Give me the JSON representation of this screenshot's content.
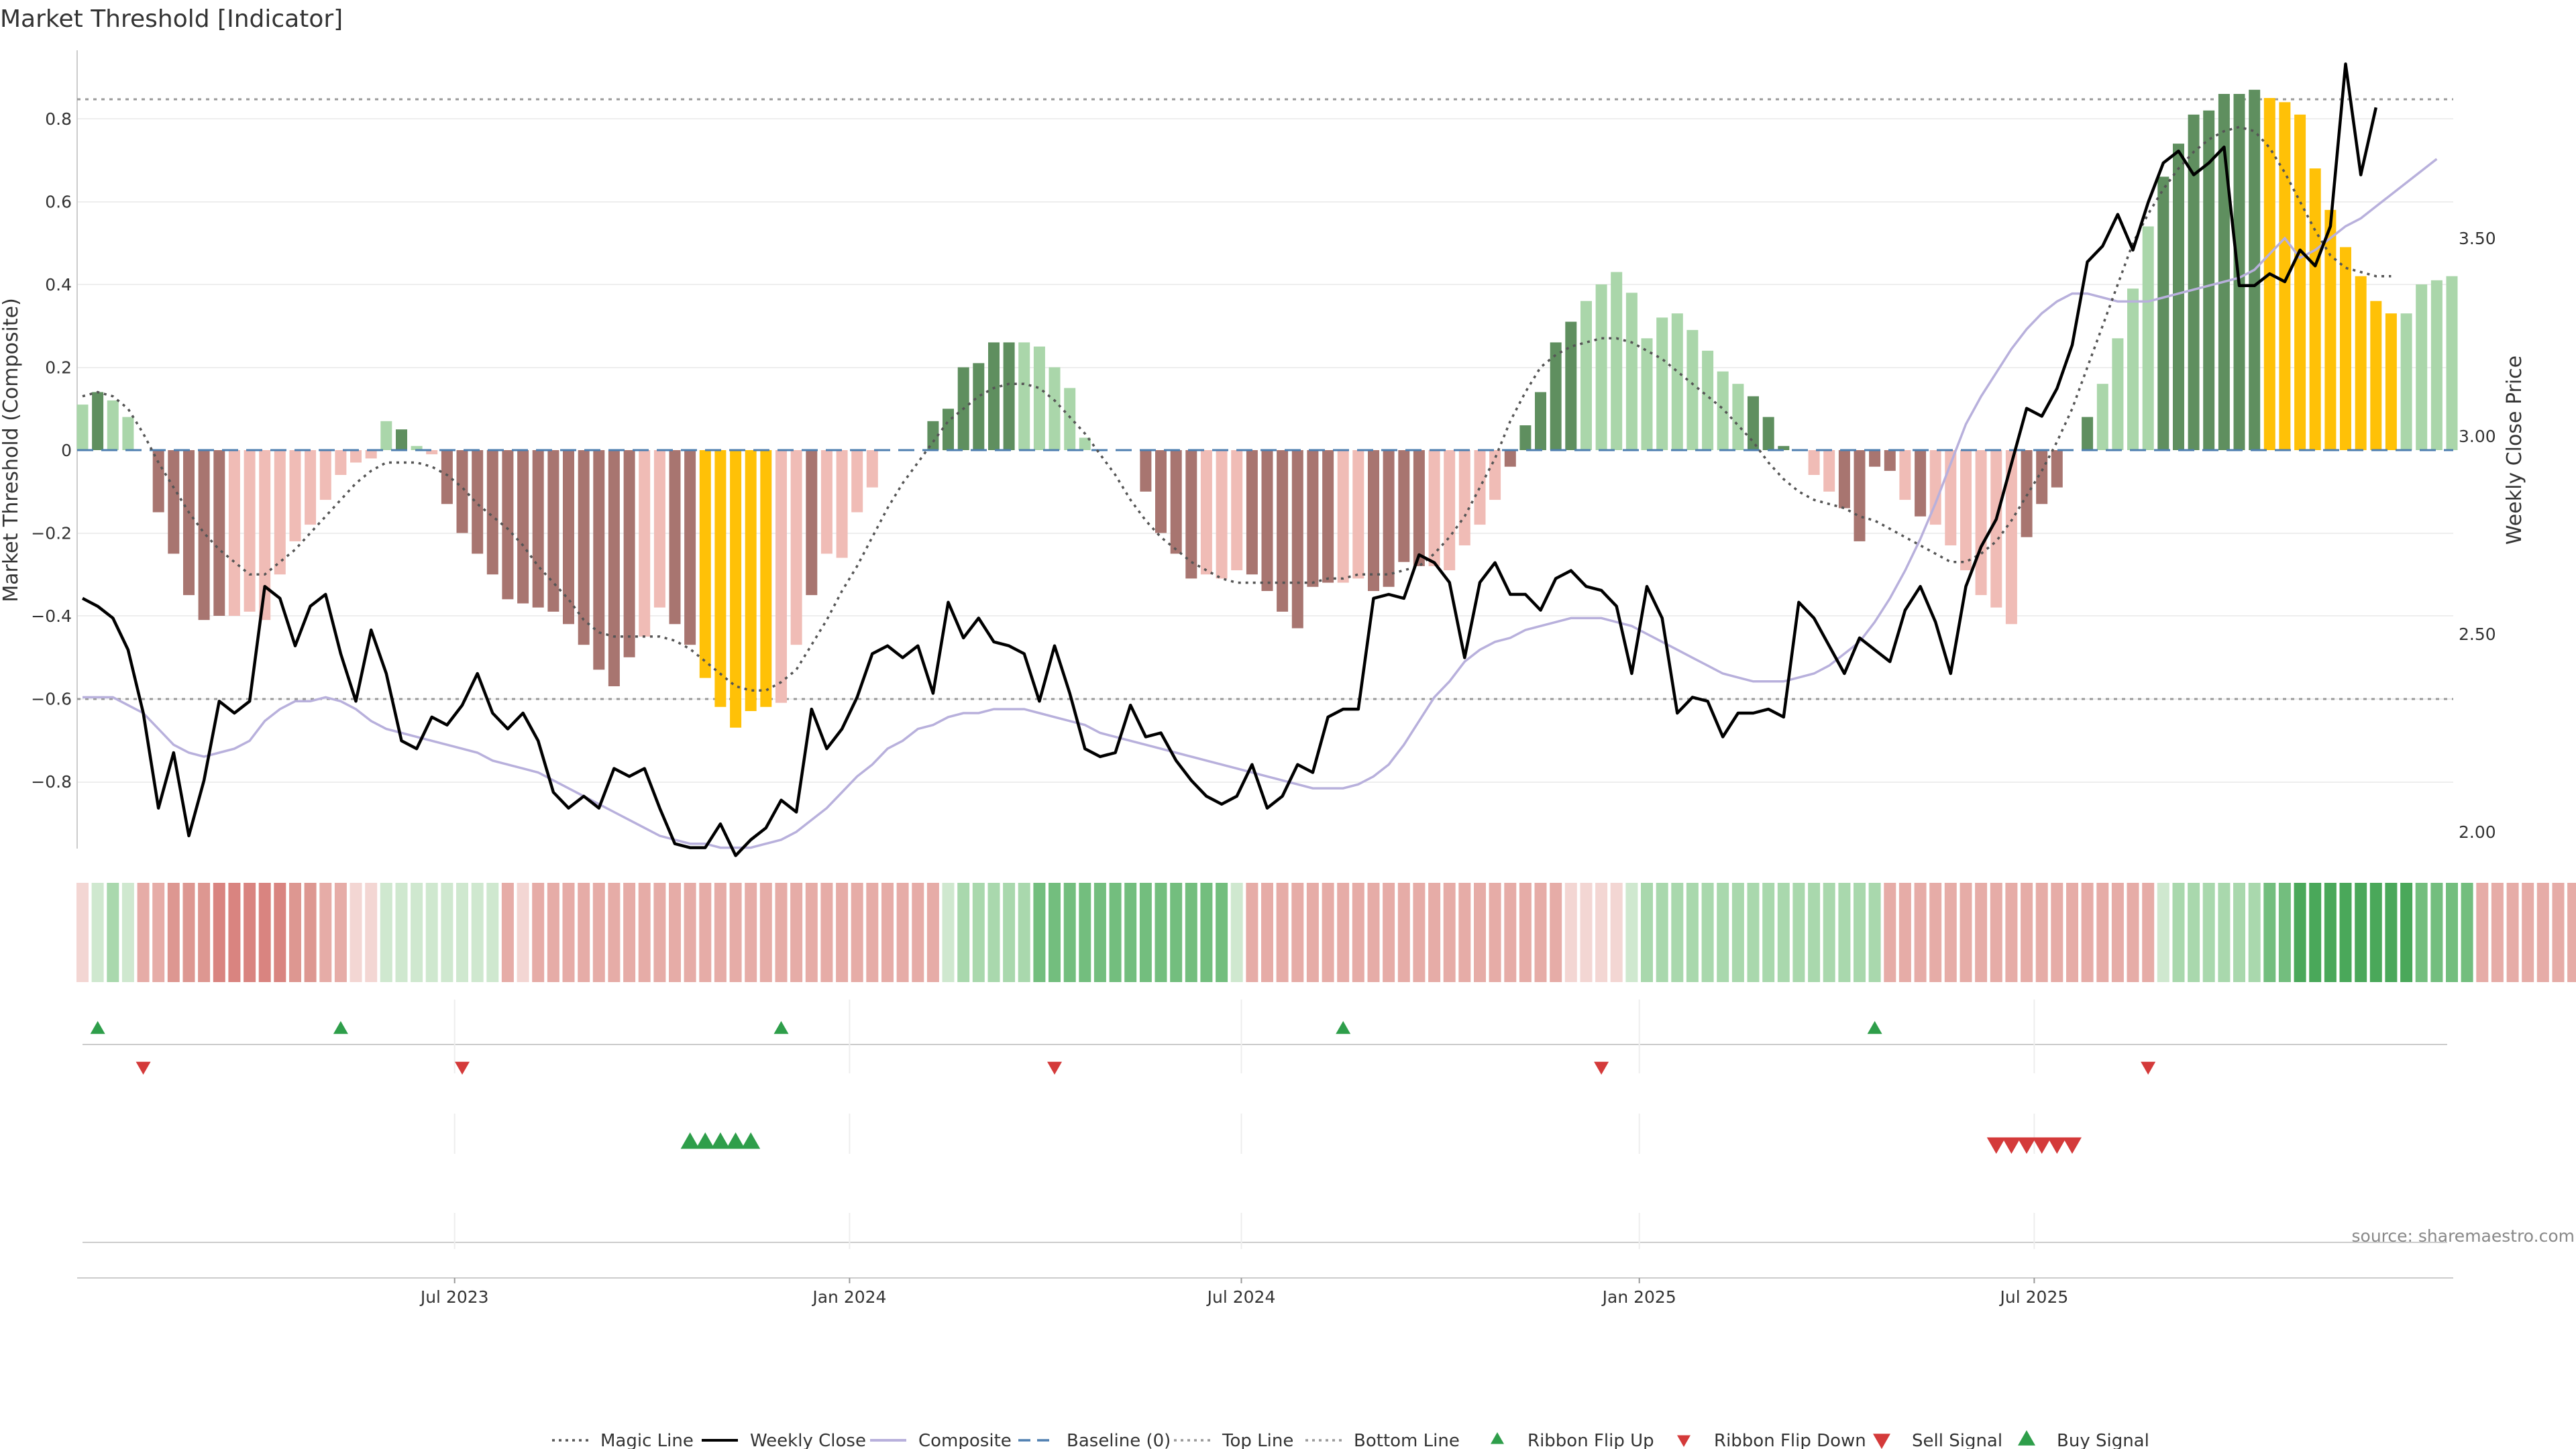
{
  "chart_data": {
    "type": "bar",
    "title": "Market Threshold [Indicator]",
    "ylabel": "Market Threshold (Composite)",
    "y2label": "Weekly Close Price",
    "ylim": [
      -0.97,
      1.0
    ],
    "y2lim": [
      1.95,
      3.98
    ],
    "yticks": [
      "−0.8",
      "−0.6",
      "−0.4",
      "−0.2",
      "0",
      "0.2",
      "0.4",
      "0.6",
      "0.8"
    ],
    "y2ticks": [
      "2.00",
      "2.50",
      "3.00",
      "3.50"
    ],
    "xticks": [
      "Jul 2023",
      "Jan 2024",
      "Jul 2024",
      "Jan 2025",
      "Jul 2025"
    ],
    "top_line": 0.85,
    "bottom_line": -0.6,
    "source": "source: sharemaestro.com",
    "legend": [
      "Magic Line",
      "Weekly Close",
      "Composite",
      "Baseline (0)",
      "Top Line",
      "Bottom Line",
      "Ribbon Flip Up",
      "Ribbon Flip Down",
      "Sell Signal",
      "Buy Signal"
    ],
    "colors": {
      "strong_up": "#5f8f5f",
      "weak_up": "#aad6aa",
      "strong_down": "#a87570",
      "weak_down": "#f0bcb6",
      "extreme": "#ffc107",
      "close": "#000000",
      "composite": "#b8b0dc",
      "magic": "#555555",
      "baseline": "#4e7fb0",
      "buy": "#2e9e4a",
      "sell": "#d43a3a"
    },
    "bar_values": [
      0.11,
      0.14,
      0.12,
      0.08,
      0,
      -0.15,
      -0.25,
      -0.35,
      -0.41,
      -0.4,
      -0.4,
      -0.39,
      -0.41,
      -0.3,
      -0.22,
      -0.18,
      -0.12,
      -0.06,
      -0.03,
      -0.02,
      0.07,
      0.05,
      0.01,
      -0.01,
      -0.13,
      -0.2,
      -0.25,
      -0.3,
      -0.36,
      -0.37,
      -0.38,
      -0.39,
      -0.42,
      -0.47,
      -0.53,
      -0.57,
      -0.5,
      -0.45,
      -0.38,
      -0.42,
      -0.47,
      -0.55,
      -0.62,
      -0.67,
      -0.63,
      -0.62,
      -0.61,
      -0.47,
      -0.35,
      -0.25,
      -0.26,
      -0.15,
      -0.09,
      0,
      0,
      0,
      0.07,
      0.1,
      0.2,
      0.21,
      0.26,
      0.26,
      0.26,
      0.25,
      0.2,
      0.15,
      0.03,
      0,
      0,
      0,
      -0.1,
      -0.2,
      -0.25,
      -0.31,
      -0.3,
      -0.31,
      -0.29,
      -0.3,
      -0.34,
      -0.39,
      -0.43,
      -0.33,
      -0.32,
      -0.32,
      -0.31,
      -0.34,
      -0.33,
      -0.27,
      -0.28,
      -0.28,
      -0.29,
      -0.23,
      -0.18,
      -0.12,
      -0.04,
      0.06,
      0.14,
      0.26,
      0.31,
      0.36,
      0.4,
      0.43,
      0.38,
      0.27,
      0.32,
      0.33,
      0.29,
      0.24,
      0.19,
      0.16,
      0.13,
      0.08,
      0.01,
      0,
      -0.06,
      -0.1,
      -0.14,
      -0.22,
      -0.04,
      -0.05,
      -0.12,
      -0.16,
      -0.18,
      -0.23,
      -0.29,
      -0.35,
      -0.38,
      -0.42,
      -0.21,
      -0.13,
      -0.09,
      0,
      0.08,
      0.16,
      0.27,
      0.39,
      0.54,
      0.66,
      0.74,
      0.81,
      0.82,
      0.86,
      0.86,
      0.87,
      0.85,
      0.84,
      0.81,
      0.68,
      0.58,
      0.49,
      0.42,
      0.36,
      0.33,
      0.33,
      0.4,
      0.41,
      0.42
    ],
    "bar_classes": "wsww_ssssswwwwwwwwwwws_wssssssssssssswwsseeeeewwsww____wsssssswwww___ssssswwwsssssswwsssswwww_ssssswwwwwwwwww_ssswwwsssswswwwwwwssssswww_ssssssseeeeeeeeewwwwwwwwsss",
    "weekly_close": [
      2.59,
      2.57,
      2.54,
      2.46,
      2.3,
      2.06,
      2.2,
      1.99,
      2.13,
      2.33,
      2.3,
      2.33,
      2.62,
      2.59,
      2.47,
      2.57,
      2.6,
      2.45,
      2.33,
      2.51,
      2.4,
      2.23,
      2.21,
      2.29,
      2.27,
      2.32,
      2.4,
      2.3,
      2.26,
      2.3,
      2.23,
      2.1,
      2.06,
      2.09,
      2.06,
      2.16,
      2.14,
      2.16,
      2.06,
      1.97,
      1.96,
      1.96,
      2.02,
      1.94,
      1.98,
      2.01,
      2.08,
      2.05,
      2.31,
      2.21,
      2.26,
      2.34,
      2.45,
      2.47,
      2.44,
      2.47,
      2.35,
      2.58,
      2.49,
      2.54,
      2.48,
      2.47,
      2.45,
      2.33,
      2.47,
      2.35,
      2.21,
      2.19,
      2.2,
      2.32,
      2.24,
      2.25,
      2.18,
      2.13,
      2.09,
      2.07,
      2.09,
      2.17,
      2.06,
      2.09,
      2.17,
      2.15,
      2.29,
      2.31,
      2.31,
      2.59,
      2.6,
      2.59,
      2.7,
      2.68,
      2.63,
      2.44,
      2.63,
      2.68,
      2.6,
      2.6,
      2.56,
      2.64,
      2.66,
      2.62,
      2.61,
      2.57,
      2.4,
      2.62,
      2.54,
      2.3,
      2.34,
      2.33,
      2.24,
      2.3,
      2.3,
      2.31,
      2.29,
      2.58,
      2.54,
      2.47,
      2.4,
      2.49,
      2.46,
      2.43,
      2.56,
      2.62,
      2.53,
      2.4,
      2.62,
      2.72,
      2.79,
      2.93,
      3.07,
      3.05,
      3.12,
      3.23,
      3.44,
      3.48,
      3.56,
      3.47,
      3.59,
      3.69,
      3.72,
      3.66,
      3.69,
      3.73,
      3.38,
      3.38,
      3.41,
      3.39,
      3.47,
      3.43,
      3.53,
      3.94,
      3.66,
      3.83
    ],
    "composite": [
      2.34,
      2.34,
      2.34,
      2.32,
      2.3,
      2.26,
      2.22,
      2.2,
      2.19,
      2.2,
      2.21,
      2.23,
      2.28,
      2.31,
      2.33,
      2.33,
      2.34,
      2.33,
      2.31,
      2.28,
      2.26,
      2.25,
      2.24,
      2.23,
      2.22,
      2.21,
      2.2,
      2.18,
      2.17,
      2.16,
      2.15,
      2.13,
      2.11,
      2.09,
      2.07,
      2.05,
      2.03,
      2.01,
      1.99,
      1.98,
      1.97,
      1.97,
      1.96,
      1.96,
      1.96,
      1.97,
      1.98,
      2.0,
      2.03,
      2.06,
      2.1,
      2.14,
      2.17,
      2.21,
      2.23,
      2.26,
      2.27,
      2.29,
      2.3,
      2.3,
      2.31,
      2.31,
      2.31,
      2.3,
      2.29,
      2.28,
      2.27,
      2.25,
      2.24,
      2.23,
      2.22,
      2.21,
      2.2,
      2.19,
      2.18,
      2.17,
      2.16,
      2.15,
      2.14,
      2.13,
      2.12,
      2.11,
      2.11,
      2.11,
      2.12,
      2.14,
      2.17,
      2.22,
      2.28,
      2.34,
      2.38,
      2.43,
      2.46,
      2.48,
      2.49,
      2.51,
      2.52,
      2.53,
      2.54,
      2.54,
      2.54,
      2.53,
      2.52,
      2.5,
      2.48,
      2.46,
      2.44,
      2.42,
      2.4,
      2.39,
      2.38,
      2.38,
      2.38,
      2.39,
      2.4,
      2.42,
      2.45,
      2.48,
      2.53,
      2.59,
      2.66,
      2.74,
      2.83,
      2.93,
      3.03,
      3.1,
      3.16,
      3.22,
      3.27,
      3.31,
      3.34,
      3.36,
      3.36,
      3.35,
      3.34,
      3.34,
      3.34,
      3.35,
      3.36,
      3.37,
      3.38,
      3.39,
      3.4,
      3.42,
      3.46,
      3.5,
      3.45,
      3.47,
      3.5,
      3.53,
      3.55,
      3.58,
      3.61,
      3.64,
      3.67,
      3.7
    ],
    "magic_line": [
      0.13,
      0.14,
      0.13,
      0.1,
      0.04,
      -0.03,
      -0.09,
      -0.15,
      -0.2,
      -0.24,
      -0.27,
      -0.3,
      -0.3,
      -0.27,
      -0.24,
      -0.2,
      -0.16,
      -0.12,
      -0.08,
      -0.05,
      -0.03,
      -0.03,
      -0.03,
      -0.04,
      -0.06,
      -0.09,
      -0.13,
      -0.16,
      -0.19,
      -0.23,
      -0.28,
      -0.32,
      -0.36,
      -0.41,
      -0.44,
      -0.45,
      -0.45,
      -0.45,
      -0.45,
      -0.46,
      -0.48,
      -0.51,
      -0.54,
      -0.57,
      -0.58,
      -0.58,
      -0.56,
      -0.53,
      -0.47,
      -0.41,
      -0.34,
      -0.28,
      -0.21,
      -0.14,
      -0.08,
      -0.03,
      0.02,
      0.07,
      0.1,
      0.13,
      0.15,
      0.16,
      0.16,
      0.15,
      0.12,
      0.08,
      0.04,
      -0.01,
      -0.06,
      -0.12,
      -0.17,
      -0.21,
      -0.24,
      -0.27,
      -0.29,
      -0.31,
      -0.32,
      -0.32,
      -0.32,
      -0.32,
      -0.32,
      -0.32,
      -0.31,
      -0.31,
      -0.3,
      -0.3,
      -0.3,
      -0.29,
      -0.28,
      -0.25,
      -0.21,
      -0.16,
      -0.09,
      -0.02,
      0.07,
      0.14,
      0.2,
      0.23,
      0.25,
      0.26,
      0.27,
      0.27,
      0.26,
      0.24,
      0.22,
      0.19,
      0.16,
      0.13,
      0.1,
      0.06,
      0.02,
      -0.03,
      -0.07,
      -0.1,
      -0.12,
      -0.13,
      -0.14,
      -0.16,
      -0.17,
      -0.19,
      -0.21,
      -0.23,
      -0.25,
      -0.27,
      -0.27,
      -0.25,
      -0.22,
      -0.17,
      -0.11,
      -0.05,
      0.02,
      0.1,
      0.2,
      0.3,
      0.4,
      0.5,
      0.57,
      0.63,
      0.68,
      0.72,
      0.75,
      0.77,
      0.78,
      0.77,
      0.73,
      0.67,
      0.6,
      0.53,
      0.47,
      0.44,
      0.43,
      0.42,
      0.42
    ],
    "ribbon_levels": [
      -1,
      1,
      2,
      1,
      -2,
      -2,
      -3,
      -3,
      -3,
      -4,
      -4,
      -4,
      -4,
      -4,
      -3,
      -3,
      -2,
      -2,
      -1,
      -1,
      1,
      1,
      1,
      1,
      1,
      1,
      1,
      1,
      -2,
      -1,
      -2,
      -2,
      -2,
      -2,
      -2,
      -2,
      -2,
      -2,
      -2,
      -2,
      -2,
      -2,
      -2,
      -2,
      -2,
      -2,
      -2,
      -2,
      -2,
      -2,
      -2,
      -2,
      -2,
      -2,
      -2,
      -2,
      -2,
      1,
      2,
      2,
      2,
      2,
      2,
      3,
      3,
      3,
      3,
      3,
      3,
      3,
      3,
      3,
      3,
      3,
      3,
      3,
      1,
      -2,
      -2,
      -2,
      -2,
      -2,
      -2,
      -2,
      -2,
      -2,
      -2,
      -2,
      -2,
      -2,
      -2,
      -2,
      -2,
      -2,
      -2,
      -2,
      -2,
      -2,
      -1,
      -1,
      -1,
      -1,
      1,
      2,
      2,
      2,
      2,
      2,
      2,
      2,
      2,
      2,
      2,
      2,
      2,
      2,
      2,
      2,
      2,
      -2,
      -2,
      -2,
      -2,
      -2,
      -2,
      -2,
      -2,
      -2,
      -2,
      -2,
      -2,
      -2,
      -2,
      -2,
      -2,
      -2,
      -2,
      1,
      2,
      2,
      2,
      2,
      2,
      2,
      3,
      3,
      4,
      4,
      4,
      4,
      4,
      4,
      4,
      4,
      3,
      3,
      3,
      3,
      -2,
      -2,
      -2,
      -2,
      -2,
      -2,
      -2
    ],
    "flip_up_weeks": [
      1,
      17,
      46,
      83,
      118
    ],
    "flip_down_weeks": [
      4,
      25,
      64,
      100,
      136
    ],
    "buy_signal_weeks": [
      40,
      41,
      42,
      43,
      44
    ],
    "sell_signal_weeks": [
      126,
      127,
      128,
      129,
      130,
      131
    ]
  }
}
